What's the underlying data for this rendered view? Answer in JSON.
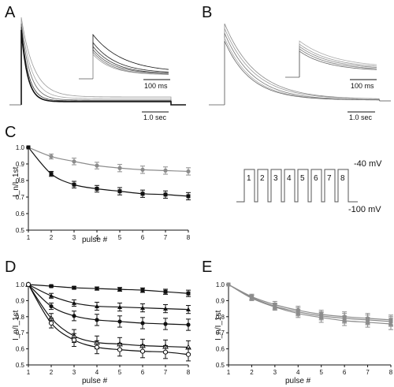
{
  "panels": {
    "A": {
      "letter": "A",
      "inset_scale": "100 ms",
      "main_scale": "1.0 sec"
    },
    "B": {
      "letter": "B",
      "inset_scale": "100 ms",
      "main_scale": "1.0 sec"
    },
    "protocol": {
      "pulses": [
        "1",
        "2",
        "3",
        "4",
        "5",
        "6",
        "7",
        "8"
      ],
      "v_hold": "-100 mV",
      "v_step": "-40 mV"
    }
  },
  "colors": {
    "black_series": "#111111",
    "gray_series": "#8c8c8c"
  },
  "chart_data": [
    {
      "panel": "C",
      "type": "line",
      "xlabel": "pulse #",
      "ylabel": "I_n/I_1st",
      "xlim": [
        1,
        8
      ],
      "ylim": [
        0.5,
        1.0
      ],
      "x_ticks": [
        1,
        2,
        3,
        4,
        5,
        6,
        7,
        8
      ],
      "y_ticks": [
        0.5,
        0.6,
        0.7,
        0.8,
        0.9,
        1.0
      ],
      "x": [
        1,
        2,
        3,
        4,
        5,
        6,
        7,
        8
      ],
      "series": [
        {
          "color": "#8c8c8c",
          "marker": "circle",
          "values": [
            1.0,
            0.945,
            0.915,
            0.89,
            0.875,
            0.865,
            0.86,
            0.855
          ],
          "err": [
            0,
            0.015,
            0.02,
            0.02,
            0.022,
            0.022,
            0.022,
            0.022
          ]
        },
        {
          "color": "#111111",
          "marker": "square",
          "values": [
            1.0,
            0.84,
            0.775,
            0.75,
            0.735,
            0.72,
            0.715,
            0.705
          ],
          "err": [
            0,
            0.015,
            0.02,
            0.02,
            0.022,
            0.022,
            0.022,
            0.022
          ]
        }
      ]
    },
    {
      "panel": "D",
      "type": "line",
      "xlabel": "pulse #",
      "ylabel": "I_n/I_1st",
      "xlim": [
        1,
        8
      ],
      "ylim": [
        0.5,
        1.0
      ],
      "x_ticks": [
        1,
        2,
        3,
        4,
        5,
        6,
        7,
        8
      ],
      "y_ticks": [
        0.5,
        0.6,
        0.7,
        0.8,
        0.9,
        1.0
      ],
      "x": [
        1,
        2,
        3,
        4,
        5,
        6,
        7,
        8
      ],
      "series": [
        {
          "color": "#111111",
          "marker": "square",
          "values": [
            1.0,
            0.99,
            0.98,
            0.975,
            0.97,
            0.965,
            0.955,
            0.945
          ],
          "err": [
            0,
            0.005,
            0.008,
            0.01,
            0.012,
            0.014,
            0.016,
            0.02
          ]
        },
        {
          "color": "#111111",
          "marker": "triangle",
          "values": [
            1.0,
            0.93,
            0.885,
            0.865,
            0.86,
            0.855,
            0.85,
            0.845
          ],
          "err": [
            0,
            0.015,
            0.02,
            0.025,
            0.025,
            0.025,
            0.025,
            0.025
          ]
        },
        {
          "color": "#111111",
          "marker": "circle",
          "values": [
            1.0,
            0.865,
            0.805,
            0.78,
            0.77,
            0.76,
            0.755,
            0.75
          ],
          "err": [
            0,
            0.02,
            0.03,
            0.035,
            0.035,
            0.035,
            0.035,
            0.035
          ]
        },
        {
          "color": "#111111",
          "marker": "open-triangle",
          "values": [
            1.0,
            0.79,
            0.68,
            0.64,
            0.63,
            0.62,
            0.615,
            0.61
          ],
          "err": [
            0,
            0.03,
            0.04,
            0.04,
            0.04,
            0.04,
            0.04,
            0.04
          ]
        },
        {
          "color": "#111111",
          "marker": "open-circle",
          "values": [
            1.0,
            0.76,
            0.655,
            0.61,
            0.595,
            0.585,
            0.58,
            0.565
          ],
          "err": [
            0,
            0.03,
            0.04,
            0.04,
            0.04,
            0.04,
            0.04,
            0.04
          ]
        }
      ]
    },
    {
      "panel": "E",
      "type": "line",
      "xlabel": "pulse #",
      "ylabel": "I_n/I_1st",
      "xlim": [
        1,
        8
      ],
      "ylim": [
        0.5,
        1.0
      ],
      "x_ticks": [
        1,
        2,
        3,
        4,
        5,
        6,
        7,
        8
      ],
      "y_ticks": [
        0.5,
        0.6,
        0.7,
        0.8,
        0.9,
        1.0
      ],
      "x": [
        1,
        2,
        3,
        4,
        5,
        6,
        7,
        8
      ],
      "series": [
        {
          "color": "#8c8c8c",
          "marker": "circle",
          "values": [
            1.0,
            0.925,
            0.875,
            0.84,
            0.815,
            0.8,
            0.79,
            0.78
          ],
          "err": [
            0,
            0.015,
            0.02,
            0.025,
            0.025,
            0.03,
            0.03,
            0.03
          ]
        },
        {
          "color": "#8c8c8c",
          "marker": "square",
          "values": [
            1.0,
            0.92,
            0.865,
            0.83,
            0.805,
            0.79,
            0.78,
            0.77
          ],
          "err": [
            0,
            0.015,
            0.02,
            0.025,
            0.025,
            0.03,
            0.03,
            0.03
          ]
        },
        {
          "color": "#8c8c8c",
          "marker": "triangle",
          "values": [
            1.0,
            0.915,
            0.86,
            0.82,
            0.795,
            0.775,
            0.765,
            0.755
          ],
          "err": [
            0,
            0.015,
            0.02,
            0.025,
            0.03,
            0.03,
            0.03,
            0.035
          ]
        }
      ]
    }
  ]
}
